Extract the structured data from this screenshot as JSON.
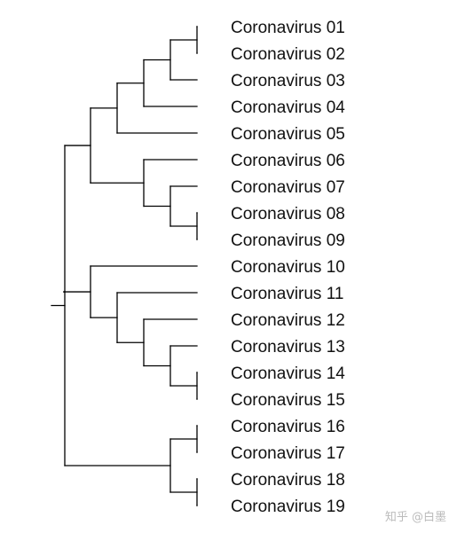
{
  "tree": {
    "leaves": [
      "Coronavirus 01",
      "Coronavirus 02",
      "Coronavirus 03",
      "Coronavirus 04",
      "Coronavirus 05",
      "Coronavirus 06",
      "Coronavirus 07",
      "Coronavirus 08",
      "Coronavirus 09",
      "Coronavirus 10",
      "Coronavirus 11",
      "Coronavirus 12",
      "Coronavirus 13",
      "Coronavirus 14",
      "Coronavirus 15",
      "Coronavirus 16",
      "Coronavirus 17",
      "Coronavirus 18",
      "Coronavirus 19"
    ],
    "newick": "((((((1,2),3),4),5),(6,(7,(8,9)))),((10,(11,(12,(13,(14,15)))))),((16,17),(18,19))))",
    "line_color": "#000000"
  },
  "watermark": "知乎 @白墨"
}
